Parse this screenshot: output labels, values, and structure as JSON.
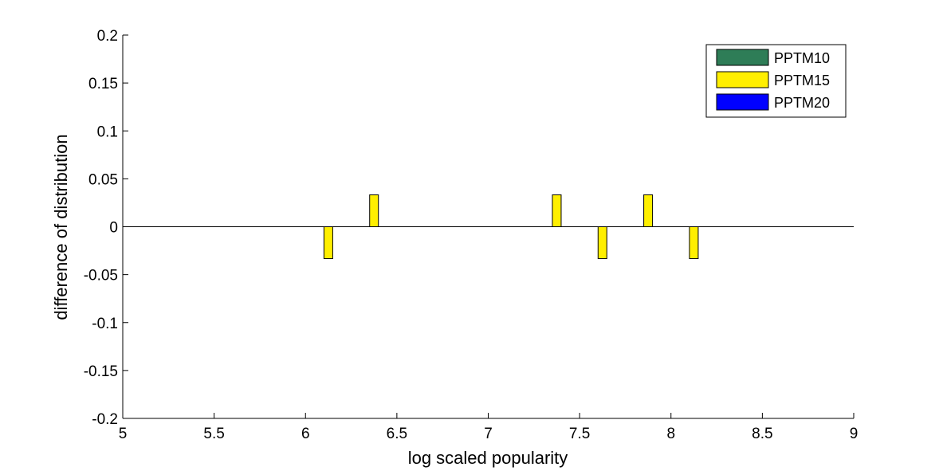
{
  "chart_data": {
    "type": "bar",
    "xlabel": "log scaled popularity",
    "ylabel": "difference of distribution",
    "xlim": [
      5,
      9
    ],
    "ylim": [
      -0.2,
      0.2
    ],
    "xticks": [
      "5",
      "5.5",
      "6",
      "6.5",
      "7",
      "7.5",
      "8",
      "8.5",
      "9"
    ],
    "yticks": [
      "0.2",
      "0.15",
      "0.1",
      "0.05",
      "0",
      "-0.05",
      "-0.1",
      "-0.15",
      "-0.2"
    ],
    "grid": false,
    "legend_position": "top-right",
    "series": [
      {
        "name": "PPTM10",
        "color": "#2e7d57",
        "points": []
      },
      {
        "name": "PPTM15",
        "color": "#ffef00",
        "points": [
          {
            "x": 6.125,
            "y": -0.0333
          },
          {
            "x": 6.375,
            "y": 0.0333
          },
          {
            "x": 7.375,
            "y": 0.0333
          },
          {
            "x": 7.625,
            "y": -0.0333
          },
          {
            "x": 7.875,
            "y": 0.0333
          },
          {
            "x": 8.125,
            "y": -0.0333
          }
        ]
      },
      {
        "name": "PPTM20",
        "color": "#0000ff",
        "points": []
      }
    ]
  }
}
